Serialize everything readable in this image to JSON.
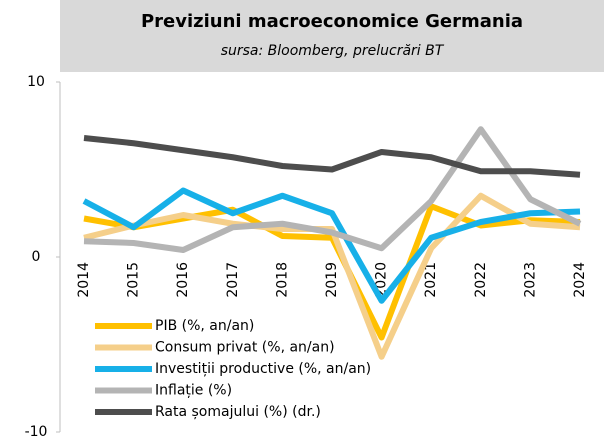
{
  "chart_data": {
    "type": "line",
    "title": "Previziuni macroeconomice Germania",
    "subtitle": "sursa: Bloomberg, prelucrări BT",
    "categories": [
      "2014",
      "2015",
      "2016",
      "2017",
      "2018",
      "2019",
      "2020",
      "2021",
      "2022",
      "2023",
      "2024"
    ],
    "series": [
      {
        "name": "PIB (%, an/an)",
        "color": "#ffc000",
        "values": [
          2.2,
          1.7,
          2.2,
          2.7,
          1.2,
          1.1,
          -4.6,
          2.9,
          1.8,
          2.1,
          2.0
        ]
      },
      {
        "name": "Consum privat (%, an/an)",
        "color": "#f5cf8a",
        "values": [
          1.1,
          1.8,
          2.4,
          1.9,
          1.6,
          1.6,
          -5.7,
          0.5,
          3.5,
          1.9,
          1.7
        ]
      },
      {
        "name": "Investiții productive (%, an/an)",
        "color": "#17b0e8",
        "values": [
          3.2,
          1.7,
          3.8,
          2.5,
          3.5,
          2.5,
          -2.5,
          1.1,
          2.0,
          2.5,
          2.6
        ]
      },
      {
        "name": "Inflație (%)",
        "color": "#b4b4b4",
        "values": [
          0.9,
          0.8,
          0.4,
          1.7,
          1.9,
          1.4,
          0.5,
          3.2,
          7.3,
          3.3,
          1.9
        ]
      },
      {
        "name": "Rata șomajului (%) (dr.)",
        "color": "#4d4d4d",
        "values": [
          6.8,
          6.5,
          6.1,
          5.7,
          5.2,
          5.0,
          6.0,
          5.7,
          4.9,
          4.9,
          4.7
        ]
      }
    ],
    "ylim": [
      -10,
      10
    ],
    "yticks": [
      -10,
      0,
      10
    ]
  }
}
